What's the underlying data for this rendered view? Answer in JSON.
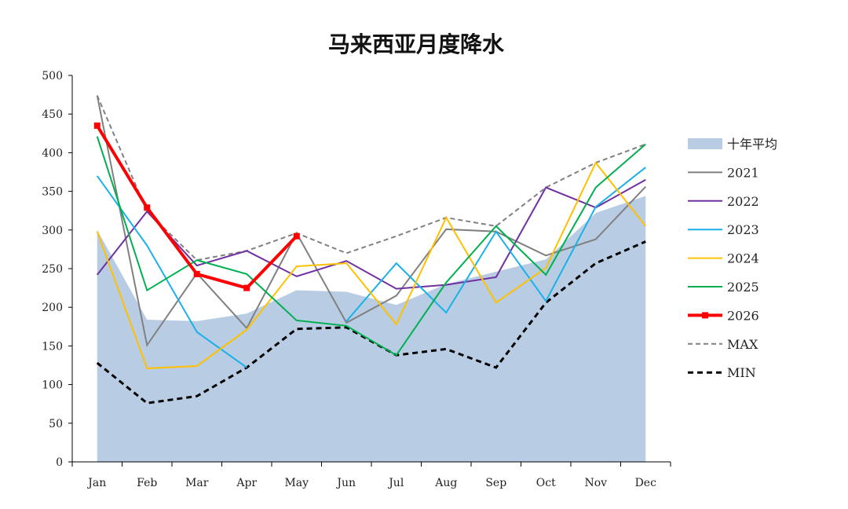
{
  "chart_data": {
    "type": "line",
    "title": "马来西亚月度降水",
    "categories": [
      "Jan",
      "Feb",
      "Mar",
      "Apr",
      "May",
      "Jun",
      "Jul",
      "Aug",
      "Sep",
      "Oct",
      "Nov",
      "Dec"
    ],
    "ylim": [
      0,
      500
    ],
    "yticks": [
      0,
      50,
      100,
      150,
      200,
      250,
      300,
      350,
      400,
      450,
      500
    ],
    "grid": false,
    "legend_position": "right",
    "area": {
      "name": "十年平均",
      "color": "#b8cce4",
      "values": [
        300,
        184,
        182,
        192,
        222,
        220,
        203,
        230,
        246,
        262,
        322,
        344
      ]
    },
    "series": [
      {
        "name": "2021",
        "color": "#808080",
        "values": [
          474,
          151,
          244,
          173,
          296,
          180,
          215,
          301,
          298,
          267,
          288,
          356
        ]
      },
      {
        "name": "2022",
        "color": "#7030a0",
        "values": [
          242,
          324,
          254,
          273,
          240,
          260,
          224,
          229,
          239,
          355,
          329,
          365
        ]
      },
      {
        "name": "2023",
        "color": "#1ab1e8",
        "values": [
          370,
          280,
          168,
          122,
          null,
          182,
          257,
          193,
          298,
          208,
          330,
          381
        ]
      },
      {
        "name": "2024",
        "color": "#ffc000",
        "values": [
          298,
          121,
          124,
          171,
          253,
          257,
          178,
          316,
          206,
          251,
          387,
          305
        ]
      },
      {
        "name": "2025",
        "color": "#00b050",
        "values": [
          421,
          222,
          261,
          243,
          183,
          176,
          138,
          232,
          305,
          242,
          355,
          411
        ]
      },
      {
        "name": "2026",
        "color": "#ff0000",
        "values": [
          435,
          329,
          243,
          225,
          292,
          null,
          null,
          null,
          null,
          null,
          null,
          null
        ]
      },
      {
        "name": "MAX",
        "color": "#808080",
        "values": [
          474,
          324,
          261,
          273,
          296,
          270,
          292,
          316,
          305,
          355,
          387,
          411
        ]
      },
      {
        "name": "MIN",
        "color": "#000000",
        "values": [
          128,
          76,
          85,
          122,
          172,
          174,
          138,
          146,
          122,
          206,
          257,
          285
        ]
      }
    ]
  }
}
